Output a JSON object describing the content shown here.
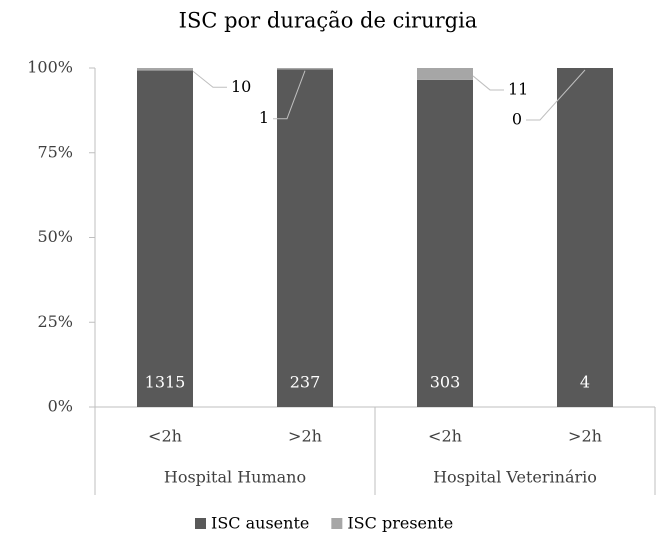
{
  "chart_data": {
    "type": "bar",
    "stack": "percent",
    "title": "ISC por duração de cirurgia",
    "categories": [
      "<2h",
      ">2h",
      "<2h",
      ">2h"
    ],
    "groups": [
      {
        "label": "Hospital Humano",
        "categories": [
          "<2h",
          ">2h"
        ]
      },
      {
        "label": "Hospital Veterinário",
        "categories": [
          "<2h",
          ">2h"
        ]
      }
    ],
    "series": [
      {
        "name": "ISC ausente",
        "color": "#595959",
        "values": [
          1315,
          237,
          303,
          4
        ]
      },
      {
        "name": "ISC presente",
        "color": "#a6a6a6",
        "values": [
          10,
          1,
          11,
          0
        ]
      }
    ],
    "ylim": [
      0,
      100
    ],
    "yticks": [
      {
        "value": 0,
        "label": "0%"
      },
      {
        "value": 25,
        "label": "25%"
      },
      {
        "value": 50,
        "label": "50%"
      },
      {
        "value": 75,
        "label": "75%"
      },
      {
        "value": 100,
        "label": "100%"
      }
    ],
    "grid": false,
    "legend": "bottom"
  }
}
